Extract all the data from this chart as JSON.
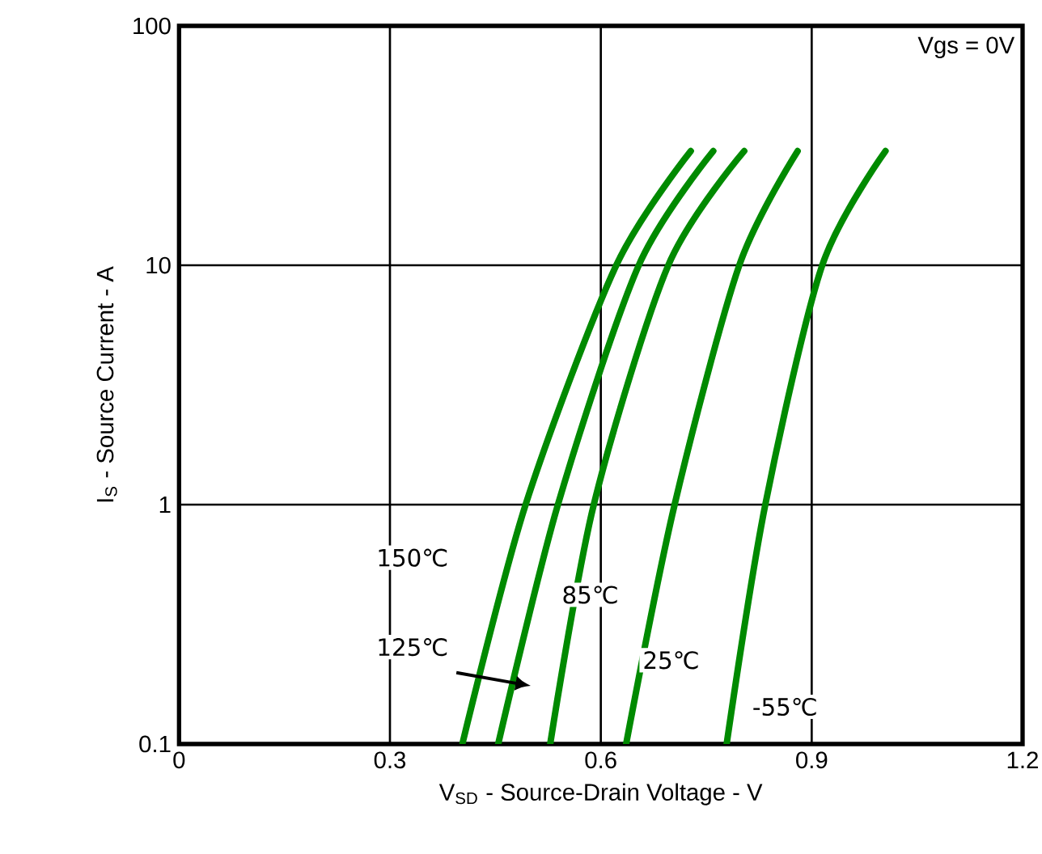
{
  "chart_data": {
    "type": "line",
    "xlabel": "V$_{SD}$ - Source-Drain Voltage - V",
    "ylabel": "I$_{S}$ - Source Current - A",
    "log": "y",
    "grid": true,
    "marker": "none",
    "line_style": "solid",
    "xlim": [
      0,
      1.2
    ],
    "xticks": [
      0,
      0.3,
      0.6,
      0.9,
      1.2
    ],
    "ylim": [
      0.1,
      100
    ],
    "yticks": [
      0.1,
      1,
      10,
      100
    ],
    "series": [
      {
        "name": "150℃",
        "color": "#008a00",
        "x": [
          0.403,
          0.493,
          0.622,
          0.728
        ],
        "values": [
          0.1,
          1,
          10,
          30
        ]
      },
      {
        "name": "125℃",
        "color": "#008a00",
        "x": [
          0.454,
          0.539,
          0.654,
          0.76
        ],
        "values": [
          0.1,
          1,
          10,
          30
        ]
      },
      {
        "name": "85℃",
        "color": "#008a00",
        "x": [
          0.528,
          0.59,
          0.696,
          0.804
        ],
        "values": [
          0.1,
          1,
          10,
          30
        ]
      },
      {
        "name": "25℃",
        "color": "#008a00",
        "x": [
          0.636,
          0.705,
          0.797,
          0.88
        ],
        "values": [
          0.1,
          1,
          10,
          30
        ]
      },
      {
        "name": "-55℃",
        "color": "#008a00",
        "x": [
          0.779,
          0.834,
          0.915,
          1.005
        ],
        "values": [
          0.1,
          1,
          10,
          30
        ]
      }
    ],
    "annotations": [
      "Vgs = 0V"
    ]
  }
}
